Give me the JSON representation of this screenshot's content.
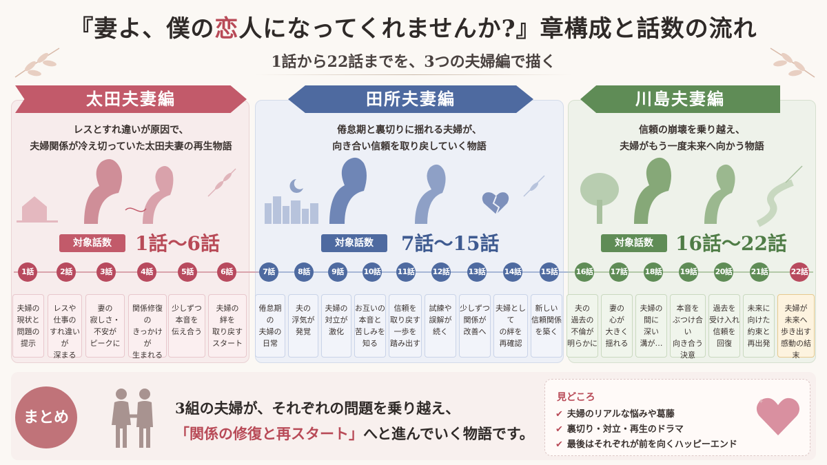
{
  "header": {
    "title_pre": "『妻よ、僕の",
    "title_accent": "恋",
    "title_post": "人になってくれませんか?』章構成と話数の流れ",
    "subtitle": "1話から22話までを、3つの夫婦編で描く"
  },
  "arcs": [
    {
      "name": "太田夫妻編",
      "desc_line1": "レスとすれ違いが原因で、",
      "desc_line2": "夫婦関係が冷え切っていた太田夫妻の再生物語",
      "badge": "対象話数",
      "range": "1話〜6話",
      "color": "#c25a6a"
    },
    {
      "name": "田所夫妻編",
      "desc_line1": "倦怠期と裏切りに揺れる夫婦が、",
      "desc_line2": "向き合い信頼を取り戻していく物語",
      "badge": "対象話数",
      "range": "7話〜15話",
      "color": "#4e6aa0"
    },
    {
      "name": "川島夫妻編",
      "desc_line1": "信頼の崩壊を乗り越え、",
      "desc_line2": "夫婦がもう一度未来へ向かう物語",
      "badge": "対象話数",
      "range": "16話〜22話",
      "color": "#5f8c56"
    }
  ],
  "episodes": [
    {
      "label": "1話",
      "text": "夫婦の\n現状と\n問題の\n提示"
    },
    {
      "label": "2話",
      "text": "レスや\n仕事の\nすれ違いが\n深まる"
    },
    {
      "label": "3話",
      "text": "妻の\n寂しさ・\n不安が\nピークに"
    },
    {
      "label": "4話",
      "text": "関係修復の\nきっかけが\n生まれる"
    },
    {
      "label": "5話",
      "text": "少しずつ\n本音を\n伝え合う"
    },
    {
      "label": "6話",
      "text": "夫婦の\n絆を\n取り戻す\nスタート"
    },
    {
      "label": "7話",
      "text": "倦怠期の\n夫婦の\n日常"
    },
    {
      "label": "8話",
      "text": "夫の\n浮気が\n発覚"
    },
    {
      "label": "9話",
      "text": "夫婦の\n対立が\n激化"
    },
    {
      "label": "10話",
      "text": "お互いの\n本音と\n苦しみを\n知る"
    },
    {
      "label": "11話",
      "text": "信頼を\n取り戻す\n一歩を\n踏み出す"
    },
    {
      "label": "12話",
      "text": "試練や\n誤解が\n続く"
    },
    {
      "label": "13話",
      "text": "少しずつ\n関係が\n改善へ"
    },
    {
      "label": "14話",
      "text": "夫婦として\nの絆を\n再確認"
    },
    {
      "label": "15話",
      "text": "新しい\n信頼関係\nを築く"
    },
    {
      "label": "16話",
      "text": "夫の\n過去の\n不倫が\n明らかに"
    },
    {
      "label": "17話",
      "text": "妻の\n心が\n大きく\n揺れる"
    },
    {
      "label": "18話",
      "text": "夫婦の\n間に\n深い\n溝が…"
    },
    {
      "label": "19話",
      "text": "本音を\nぶつけ合い\n向き合う\n決意"
    },
    {
      "label": "20話",
      "text": "過去を\n受け入れ\n信頼を\n回復"
    },
    {
      "label": "21話",
      "text": "未来に\n向けた\n約束と\n再出発"
    },
    {
      "label": "22話",
      "text": "夫婦が\n未来へ\n歩き出す\n感動の結末"
    }
  ],
  "summary": {
    "badge": "まとめ",
    "line1": "3組の夫婦が、それぞれの問題を乗り越え、",
    "line2_hl": "「関係の修復と再スタート」",
    "line2_rest": "へと進んでいく物語です。"
  },
  "highlights": {
    "title": "見どころ",
    "items": [
      "夫婦のリアルな悩みや葛藤",
      "裏切り・対立・再生のドラマ",
      "最後はそれぞれが前を向くハッピーエンド"
    ]
  }
}
